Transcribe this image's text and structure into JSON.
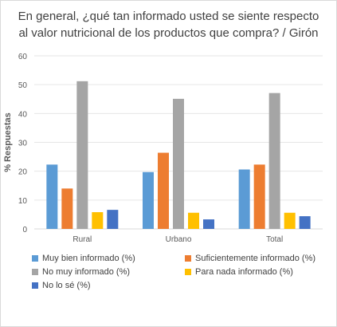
{
  "chart_data": {
    "type": "bar",
    "title": "En general, ¿qué tan informado usted se siente respecto al valor nutricional de los productos que compra? / Girón",
    "ylabel": "% Respuestas",
    "xlabel": "",
    "ylim": [
      0,
      60
    ],
    "yticks": [
      "0",
      "10",
      "20",
      "30",
      "40",
      "50",
      "60"
    ],
    "grid": true,
    "legend_position": "bottom",
    "categories": [
      "Rural",
      "Urbano",
      "Total"
    ],
    "series": [
      {
        "name": "Muy bien informado (%)",
        "color": "#5b9bd5",
        "values": [
          22.3,
          19.7,
          20.6
        ]
      },
      {
        "name": "Suficientemente informado (%)",
        "color": "#ed7d31",
        "values": [
          14.0,
          26.4,
          22.3
        ]
      },
      {
        "name": "No muy informado (%)",
        "color": "#a5a5a5",
        "values": [
          51.2,
          45.1,
          47.1
        ]
      },
      {
        "name": "Para nada informado (%)",
        "color": "#ffc000",
        "values": [
          5.8,
          5.6,
          5.6
        ]
      },
      {
        "name": "No lo sé (%)",
        "color": "#4472c4",
        "values": [
          6.6,
          3.3,
          4.4
        ]
      }
    ]
  }
}
